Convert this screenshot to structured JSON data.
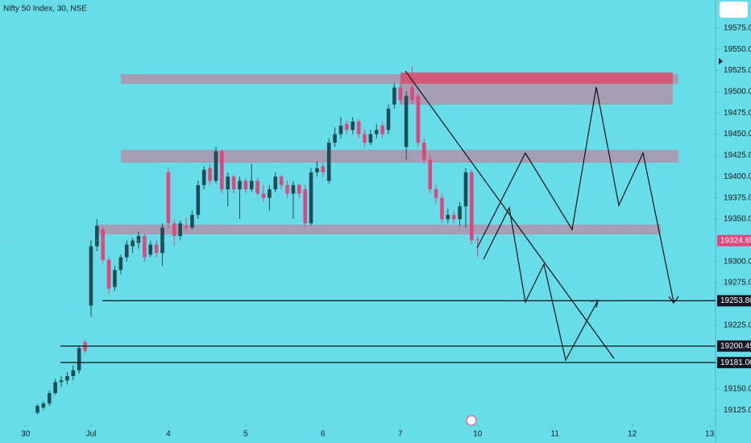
{
  "chart_data": {
    "type": "candlestick",
    "title": "Nifty 50 Index, 30, NSE",
    "up_color": "#1f4d55",
    "down_color": "#e0457b",
    "x": [
      -9,
      -8,
      -7,
      -6,
      -5,
      -4,
      -3,
      -2,
      -1,
      0,
      1,
      2,
      3,
      4,
      5,
      6,
      7,
      8,
      9,
      10,
      11,
      12,
      13,
      14,
      15,
      16,
      17,
      18,
      19,
      20,
      21,
      22,
      23,
      24,
      25,
      26,
      27,
      28,
      29,
      30,
      31,
      32,
      33,
      34,
      35,
      36,
      37,
      38,
      39,
      40,
      41,
      42,
      43,
      44,
      45,
      46,
      47,
      48,
      49,
      50,
      51,
      52,
      53,
      54,
      55,
      56,
      57,
      58,
      59,
      60,
      61,
      62,
      63,
      64,
      65
    ],
    "open": [
      19122,
      19128,
      19133,
      19145,
      19158,
      19160,
      19165,
      19172,
      19205,
      19248,
      19318,
      19338,
      19302,
      19270,
      19290,
      19305,
      19318,
      19322,
      19330,
      19308,
      19320,
      19310,
      19405,
      19345,
      19330,
      19342,
      19340,
      19355,
      19390,
      19410,
      19395,
      19430,
      19385,
      19400,
      19385,
      19395,
      19385,
      19395,
      19380,
      19375,
      19385,
      19400,
      19390,
      19380,
      19390,
      19385,
      19345,
      19405,
      19412,
      19395,
      19440,
      19450,
      19462,
      19455,
      19465,
      19450,
      19440,
      19450,
      19460,
      19455,
      19485,
      19505,
      19435,
      19505,
      19495,
      19440,
      19420,
      19385,
      19375,
      19350,
      19355,
      19350,
      19365,
      19405,
      19326
    ],
    "high": [
      19132,
      19135,
      19148,
      19162,
      19165,
      19170,
      19178,
      19200,
      19208,
      19325,
      19350,
      19342,
      19305,
      19295,
      19308,
      19325,
      19328,
      19335,
      19332,
      19325,
      19325,
      19345,
      19410,
      19350,
      19348,
      19352,
      19360,
      19395,
      19412,
      19415,
      19435,
      19432,
      19405,
      19402,
      19400,
      19398,
      19415,
      19398,
      19390,
      19390,
      19405,
      19402,
      19395,
      19395,
      19392,
      19390,
      19410,
      19418,
      19416,
      19445,
      19458,
      19470,
      19466,
      19470,
      19468,
      19455,
      19455,
      19462,
      19465,
      19485,
      19510,
      19512,
      19500,
      19530,
      19498,
      19445,
      19425,
      19390,
      19380,
      19362,
      19360,
      19370,
      19410,
      19408,
      19330
    ],
    "low": [
      19120,
      19125,
      19130,
      19143,
      19152,
      19155,
      19160,
      19168,
      19192,
      19235,
      19312,
      19298,
      19262,
      19265,
      19285,
      19300,
      19310,
      19315,
      19300,
      19305,
      19305,
      19295,
      19338,
      19318,
      19325,
      19335,
      19338,
      19350,
      19385,
      19390,
      19392,
      19380,
      19365,
      19380,
      19350,
      19380,
      19382,
      19378,
      19370,
      19360,
      19382,
      19385,
      19375,
      19350,
      19375,
      19340,
      19342,
      19400,
      19400,
      19392,
      19435,
      19445,
      19450,
      19450,
      19445,
      19435,
      19437,
      19445,
      19445,
      19450,
      19480,
      19485,
      19420,
      19485,
      19435,
      19415,
      19380,
      19368,
      19345,
      19345,
      19345,
      19342,
      19340,
      19320,
      19305
    ],
    "close": [
      19130,
      19133,
      19145,
      19158,
      19160,
      19165,
      19172,
      19198,
      19195,
      19318,
      19342,
      19302,
      19268,
      19290,
      19305,
      19320,
      19325,
      19330,
      19305,
      19320,
      19310,
      19340,
      19345,
      19330,
      19345,
      19340,
      19355,
      19390,
      19408,
      19395,
      19430,
      19385,
      19400,
      19385,
      19395,
      19385,
      19395,
      19380,
      19375,
      19385,
      19400,
      19390,
      19380,
      19390,
      19380,
      19345,
      19405,
      19410,
      19405,
      19440,
      19450,
      19460,
      19455,
      19465,
      19450,
      19440,
      19450,
      19455,
      19450,
      19480,
      19505,
      19490,
      19495,
      19490,
      19440,
      19420,
      19385,
      19375,
      19350,
      19355,
      19350,
      19365,
      19405,
      19325,
      19325
    ],
    "xlim": [
      -15.3,
      105
    ],
    "xticks": [
      {
        "value": -11,
        "label": "30"
      },
      {
        "value": 0,
        "label": "Jul"
      },
      {
        "value": 13,
        "label": "4"
      },
      {
        "value": 26,
        "label": "5"
      },
      {
        "value": 39,
        "label": "6"
      },
      {
        "value": 52,
        "label": "7"
      },
      {
        "value": 65,
        "label": "10"
      },
      {
        "value": 78,
        "label": "11"
      },
      {
        "value": 91,
        "label": "12"
      },
      {
        "value": 104,
        "label": "13"
      }
    ],
    "ylim": [
      19110,
      19608
    ],
    "yticks": [
      {
        "value": 19125,
        "label": "19125.00"
      },
      {
        "value": 19150,
        "label": "19150.00"
      },
      {
        "value": 19225,
        "label": "19225.00"
      },
      {
        "value": 19275,
        "label": "19275.00"
      },
      {
        "value": 19300,
        "label": "19300.00"
      },
      {
        "value": 19350,
        "label": "19350.00"
      },
      {
        "value": 19375,
        "label": "19375.00"
      },
      {
        "value": 19400,
        "label": "19400.00"
      },
      {
        "value": 19425,
        "label": "19425.00"
      },
      {
        "value": 19450,
        "label": "19450.00"
      },
      {
        "value": 19475,
        "label": "19475.00"
      },
      {
        "value": 19500,
        "label": "19500.00"
      },
      {
        "value": 19525,
        "label": "19525.00"
      },
      {
        "value": 19550,
        "label": "19550.00"
      },
      {
        "value": 19575,
        "label": "19575.00"
      }
    ],
    "levels": [
      {
        "value": 19253.8,
        "label": "19253.80"
      },
      {
        "value": 19200.45,
        "label": "19200.45"
      },
      {
        "value": 19181,
        "label": "19181.00"
      }
    ],
    "last_price": 19324.65
  }
}
